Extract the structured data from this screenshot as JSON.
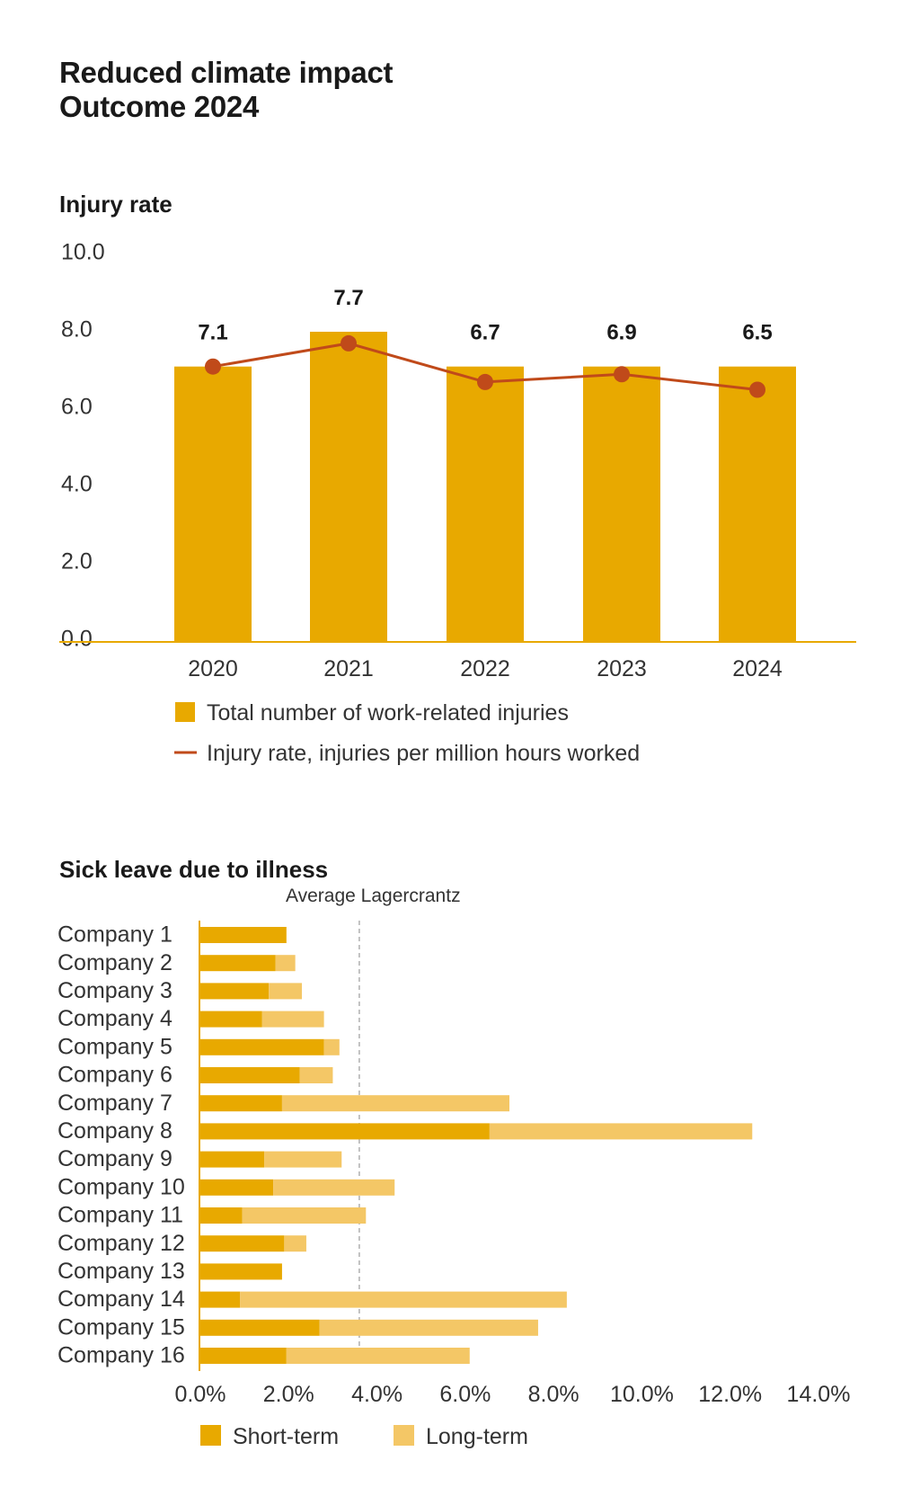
{
  "page": {
    "title_line1": "Reduced climate impact",
    "title_line2": "Outcome 2024"
  },
  "colors": {
    "bar": "#E8A900",
    "bar_light": "#F4C766",
    "line": "#C04A1A",
    "axis": "#E8A900",
    "avg_line": "#B0B0B0"
  },
  "chart_data": [
    {
      "type": "bar",
      "title": "Injury rate",
      "categories": [
        "2020",
        "2021",
        "2022",
        "2023",
        "2024"
      ],
      "ylim": [
        0,
        10
      ],
      "yticks": [
        "10.0",
        "8.0",
        "6.0",
        "4.0",
        "2.0",
        "0.0"
      ],
      "series": [
        {
          "name": "Total number of work-related injuries",
          "kind": "bar",
          "values": [
            7.1,
            8.0,
            7.1,
            7.1,
            7.1
          ]
        },
        {
          "name": "Injury rate, injuries per million hours worked",
          "kind": "line",
          "values": [
            7.1,
            7.7,
            6.7,
            6.9,
            6.5
          ]
        }
      ],
      "data_labels": [
        "7.1",
        "7.7",
        "6.7",
        "6.9",
        "6.5"
      ],
      "legend": [
        "Total number of work-related injuries",
        "Injury rate, injuries per million hours worked"
      ]
    },
    {
      "type": "bar",
      "orientation": "horizontal",
      "stacked": true,
      "title": "Sick leave due to illness",
      "annotation": "Average Lagercrantz",
      "average_value": 3.6,
      "categories": [
        "Company 1",
        "Company 2",
        "Company 3",
        "Company 4",
        "Company 5",
        "Company 6",
        "Company 7",
        "Company 8",
        "Company 9",
        "Company 10",
        "Company 11",
        "Company 12",
        "Company 13",
        "Company 14",
        "Company 15",
        "Company 16"
      ],
      "xlim": [
        0,
        14
      ],
      "xticks": [
        "0.0%",
        "2.0%",
        "4.0%",
        "6.0%",
        "8.0%",
        "10.0%",
        "12.0%",
        "14.0%"
      ],
      "series": [
        {
          "name": "Short-term",
          "values": [
            1.95,
            1.7,
            1.55,
            1.4,
            2.8,
            2.25,
            1.85,
            6.55,
            1.45,
            1.65,
            0.95,
            1.9,
            1.85,
            0.9,
            2.7,
            1.95
          ]
        },
        {
          "name": "Long-term",
          "values": [
            0.0,
            0.45,
            0.75,
            1.4,
            0.35,
            0.75,
            5.15,
            5.95,
            1.75,
            2.75,
            2.8,
            0.5,
            0.0,
            7.4,
            4.95,
            4.15
          ]
        }
      ],
      "legend": [
        "Short-term",
        "Long-term"
      ]
    }
  ]
}
